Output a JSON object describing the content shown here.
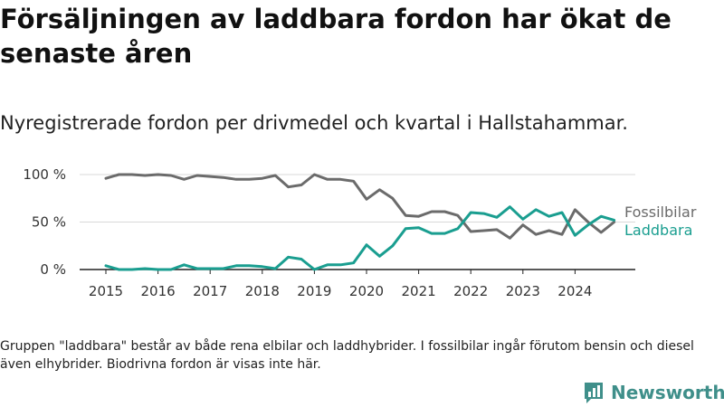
{
  "title": "Försäljningen av laddbara fordon har ökat de senaste åren",
  "subtitle": "Nyregistrerade fordon per drivmedel och kvartal i Hallstahammar.",
  "note": "Gruppen \"laddbara\" består av både rena elbilar och laddhybrider. I fossilbilar ingår förutom bensin och diesel även elhybrider. Biodrivna fordon är visas inte här.",
  "brand": "Newsworthy",
  "colors": {
    "fossil": "#6b6b6b",
    "laddbara": "#1a9e90",
    "brand": "#3f8f8a"
  },
  "chart_data": {
    "type": "line",
    "x": [
      "2015 Q1",
      "2015 Q2",
      "2015 Q3",
      "2015 Q4",
      "2016 Q1",
      "2016 Q2",
      "2016 Q3",
      "2016 Q4",
      "2017 Q1",
      "2017 Q2",
      "2017 Q3",
      "2017 Q4",
      "2018 Q1",
      "2018 Q2",
      "2018 Q3",
      "2018 Q4",
      "2019 Q1",
      "2019 Q2",
      "2019 Q3",
      "2019 Q4",
      "2020 Q1",
      "2020 Q2",
      "2020 Q3",
      "2020 Q4",
      "2021 Q1",
      "2021 Q2",
      "2021 Q3",
      "2021 Q4",
      "2022 Q1",
      "2022 Q2",
      "2022 Q3",
      "2022 Q4",
      "2023 Q1",
      "2023 Q2",
      "2023 Q3",
      "2023 Q4",
      "2024 Q1",
      "2024 Q2",
      "2024 Q3",
      "2024 Q4"
    ],
    "x_ticks": [
      "2015",
      "2016",
      "2017",
      "2018",
      "2019",
      "2020",
      "2021",
      "2022",
      "2023",
      "2024"
    ],
    "y_ticks": [
      "0 %",
      "50 %",
      "100 %"
    ],
    "ylim": [
      0,
      100
    ],
    "series": [
      {
        "name": "Fossilbilar",
        "values": [
          96,
          100,
          100,
          99,
          100,
          99,
          95,
          99,
          98,
          97,
          95,
          95,
          96,
          99,
          87,
          89,
          100,
          95,
          95,
          93,
          74,
          84,
          75,
          57,
          56,
          61,
          61,
          57,
          40,
          41,
          42,
          33,
          47,
          37,
          41,
          37,
          63,
          50,
          39,
          50
        ]
      },
      {
        "name": "Laddbara",
        "values": [
          4,
          0,
          0,
          1,
          0,
          0,
          5,
          1,
          1,
          1,
          4,
          4,
          3,
          1,
          13,
          11,
          0,
          5,
          5,
          7,
          26,
          14,
          25,
          43,
          44,
          38,
          38,
          43,
          60,
          59,
          55,
          66,
          53,
          63,
          56,
          60,
          36,
          47,
          56,
          52
        ]
      }
    ]
  }
}
